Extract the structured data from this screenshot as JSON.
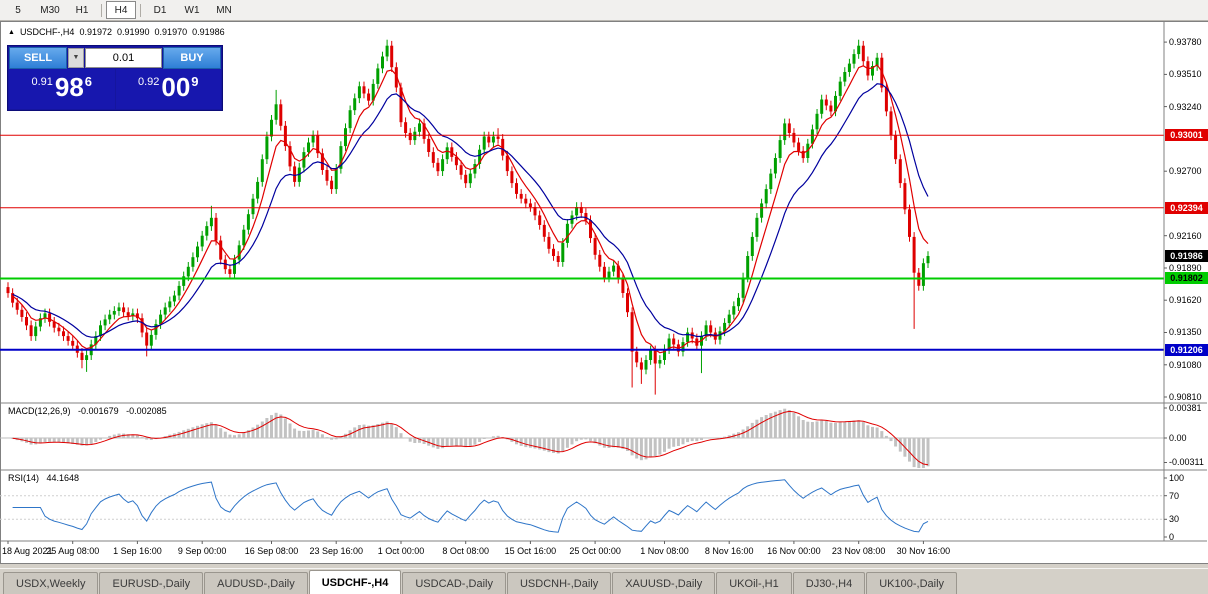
{
  "toolbar": {
    "items": [
      {
        "label": "5",
        "active": false,
        "sep_before": false,
        "sep_after": false
      },
      {
        "label": "M30",
        "active": false,
        "sep_before": false,
        "sep_after": false
      },
      {
        "label": "H1",
        "active": false,
        "sep_before": false,
        "sep_after": false
      },
      {
        "label": "H4",
        "active": true,
        "sep_before": true,
        "sep_after": true
      },
      {
        "label": "D1",
        "active": false,
        "sep_before": false,
        "sep_after": false
      },
      {
        "label": "W1",
        "active": false,
        "sep_before": false,
        "sep_after": false
      },
      {
        "label": "MN",
        "active": false,
        "sep_before": false,
        "sep_after": false
      }
    ]
  },
  "chart_header": {
    "marker": "▲",
    "symbol": "USDCHF-,H4",
    "open": "0.91972",
    "high": "0.91990",
    "low": "0.91970",
    "close": "0.91986"
  },
  "trade_panel": {
    "sell_label": "SELL",
    "buy_label": "BUY",
    "volume": "0.01",
    "dropdown_icon": "▼",
    "sell_price_small": "0.91",
    "sell_price_big": "98",
    "sell_price_sup": "6",
    "buy_price_small": "0.92",
    "buy_price_big": "00",
    "buy_price_sup": "9"
  },
  "tabs": {
    "items": [
      {
        "label": "USDX,Weekly",
        "active": false
      },
      {
        "label": "EURUSD-,Daily",
        "active": false
      },
      {
        "label": "AUDUSD-,Daily",
        "active": false
      },
      {
        "label": "USDCHF-,H4",
        "active": true
      },
      {
        "label": "USDCAD-,Daily",
        "active": false
      },
      {
        "label": "USDCNH-,Daily",
        "active": false
      },
      {
        "label": "XAUUSD-,Daily",
        "active": false
      },
      {
        "label": "UKOil-,H1",
        "active": false
      },
      {
        "label": "DJ30-,H4",
        "active": false
      },
      {
        "label": "UK100-,Daily",
        "active": false
      }
    ]
  },
  "chart_data": [
    {
      "type": "candlestick",
      "title": "USDCHF-,H4",
      "ylim": [
        0.9076,
        0.9394
      ],
      "y_ticks": [
        "0.93780",
        "0.93510",
        "0.93240",
        "0.92700",
        "0.92160",
        "0.91890",
        "0.91620",
        "0.91350",
        "0.91080",
        "0.90810"
      ],
      "x_labels": [
        {
          "label": "18 Aug 2021",
          "i": 0
        },
        {
          "label": "25 Aug 08:00",
          "i": 14
        },
        {
          "label": "1 Sep 16:00",
          "i": 28
        },
        {
          "label": "9 Sep 00:00",
          "i": 42
        },
        {
          "label": "16 Sep 08:00",
          "i": 57
        },
        {
          "label": "23 Sep 16:00",
          "i": 71
        },
        {
          "label": "1 Oct 00:00",
          "i": 85
        },
        {
          "label": "8 Oct 08:00",
          "i": 99
        },
        {
          "label": "15 Oct 16:00",
          "i": 113
        },
        {
          "label": "25 Oct 00:00",
          "i": 127
        },
        {
          "label": "1 Nov 08:00",
          "i": 142
        },
        {
          "label": "8 Nov 16:00",
          "i": 156
        },
        {
          "label": "16 Nov 00:00",
          "i": 170
        },
        {
          "label": "23 Nov 08:00",
          "i": 184
        },
        {
          "label": "30 Nov 16:00",
          "i": 198
        }
      ],
      "levels": [
        {
          "label": "0.93001",
          "value": 0.93001,
          "color": "#E00000",
          "text_color": "#FFFFFF",
          "line_width": 1
        },
        {
          "label": "0.92394",
          "value": 0.92394,
          "color": "#E00000",
          "text_color": "#FFFFFF",
          "line_width": 1
        },
        {
          "label": "0.91802",
          "value": 0.91802,
          "color": "#00CC00",
          "text_color": "#000000",
          "line_width": 2
        },
        {
          "label": "0.91206",
          "value": 0.91206,
          "color": "#0000C8",
          "text_color": "#FFFFFF",
          "line_width": 2
        }
      ],
      "current_price": {
        "label": "0.91986",
        "value": 0.91986,
        "color": "#000000",
        "text_color": "#FFFFFF"
      },
      "overlays": [
        {
          "name": "ma-fast",
          "period": 6,
          "color": "#E00000"
        },
        {
          "name": "ma-slow",
          "period": 14,
          "color": "#00009E"
        }
      ],
      "candles": {
        "up_color": "#00A000",
        "down_color": "#DE0000",
        "wick": 0.0004,
        "first_open": 0.9173,
        "closes": [
          0.9168,
          0.916,
          0.9154,
          0.9148,
          0.9141,
          0.9132,
          0.914,
          0.9147,
          0.9151,
          0.9144,
          0.9139,
          0.9136,
          0.9132,
          0.9128,
          0.9124,
          0.9118,
          0.9112,
          0.9116,
          0.9125,
          0.9132,
          0.9141,
          0.9146,
          0.915,
          0.9153,
          0.9156,
          0.9152,
          0.9149,
          0.9151,
          0.9147,
          0.9135,
          0.9124,
          0.9133,
          0.9142,
          0.915,
          0.9156,
          0.9161,
          0.9166,
          0.9174,
          0.9182,
          0.919,
          0.9198,
          0.9207,
          0.9216,
          0.9224,
          0.9231,
          0.9212,
          0.9196,
          0.9188,
          0.9184,
          0.9196,
          0.9208,
          0.9221,
          0.9234,
          0.9247,
          0.9261,
          0.928,
          0.9299,
          0.9313,
          0.9326,
          0.9308,
          0.9291,
          0.9274,
          0.9261,
          0.9273,
          0.9286,
          0.9294,
          0.93,
          0.9285,
          0.9271,
          0.9262,
          0.9255,
          0.9272,
          0.9291,
          0.9306,
          0.9321,
          0.9331,
          0.9341,
          0.9335,
          0.9329,
          0.9343,
          0.9356,
          0.9366,
          0.9375,
          0.9357,
          0.934,
          0.9311,
          0.9302,
          0.9296,
          0.9303,
          0.931,
          0.9297,
          0.9286,
          0.9277,
          0.927,
          0.928,
          0.929,
          0.9282,
          0.9275,
          0.9267,
          0.926,
          0.9268,
          0.9276,
          0.9288,
          0.9299,
          0.9294,
          0.9299,
          0.9297,
          0.9283,
          0.927,
          0.926,
          0.9251,
          0.9247,
          0.9243,
          0.924,
          0.9233,
          0.9225,
          0.9215,
          0.9205,
          0.9199,
          0.9194,
          0.921,
          0.9226,
          0.9233,
          0.924,
          0.9235,
          0.9229,
          0.9214,
          0.92,
          0.919,
          0.9181,
          0.9186,
          0.9191,
          0.918,
          0.9168,
          0.9152,
          0.9119,
          0.911,
          0.9104,
          0.9112,
          0.912,
          0.9109,
          0.9112,
          0.9121,
          0.913,
          0.9125,
          0.9119,
          0.9127,
          0.9135,
          0.913,
          0.9124,
          0.9132,
          0.9141,
          0.9135,
          0.9129,
          0.9136,
          0.9143,
          0.915,
          0.9157,
          0.9164,
          0.9181,
          0.9199,
          0.9215,
          0.9231,
          0.9243,
          0.9255,
          0.9268,
          0.9281,
          0.9296,
          0.931,
          0.9302,
          0.9294,
          0.9287,
          0.9281,
          0.9293,
          0.9305,
          0.9318,
          0.933,
          0.9325,
          0.932,
          0.9333,
          0.9345,
          0.9353,
          0.936,
          0.9368,
          0.9375,
          0.9362,
          0.935,
          0.9358,
          0.9365,
          0.934,
          0.932,
          0.93,
          0.928,
          0.926,
          0.9238,
          0.9215,
          0.9185,
          0.9174,
          0.9193,
          0.9199
        ],
        "spikes": [
          {
            "i": 16,
            "l": 0.9105
          },
          {
            "i": 17,
            "l": 0.9102
          },
          {
            "i": 30,
            "l": 0.9115
          },
          {
            "i": 44,
            "h": 0.9241
          },
          {
            "i": 58,
            "h": 0.9338
          },
          {
            "i": 82,
            "h": 0.938
          },
          {
            "i": 106,
            "h": 0.9306
          },
          {
            "i": 135,
            "l": 0.9089
          },
          {
            "i": 137,
            "l": 0.9092
          },
          {
            "i": 140,
            "l": 0.9083
          },
          {
            "i": 150,
            "l": 0.9101
          },
          {
            "i": 184,
            "h": 0.938
          },
          {
            "i": 196,
            "l": 0.9138
          }
        ]
      }
    },
    {
      "type": "macd",
      "label": "MACD(12,26,9)",
      "value_main": "-0.001679",
      "value_signal": "-0.002085",
      "ticks": [
        {
          "label": "0.00381",
          "value": 0.00381
        },
        {
          "label": "0.00",
          "value": 0
        },
        {
          "label": "-0.00311",
          "value": -0.00311
        }
      ],
      "render": {
        "fast": 6,
        "slow": 13,
        "signal": 5
      },
      "hist_color": "#C2C2C2",
      "signal_color": "#E00000"
    },
    {
      "type": "rsi",
      "label": "RSI(14)",
      "value": "44.1648",
      "ticks": [
        {
          "label": "100",
          "value": 100
        },
        {
          "label": "70",
          "value": 70
        },
        {
          "label": "30",
          "value": 30
        },
        {
          "label": "0",
          "value": 0
        }
      ],
      "levels": [
        70,
        30
      ],
      "render": {
        "period": 7
      },
      "color": "#2E75C8"
    }
  ]
}
